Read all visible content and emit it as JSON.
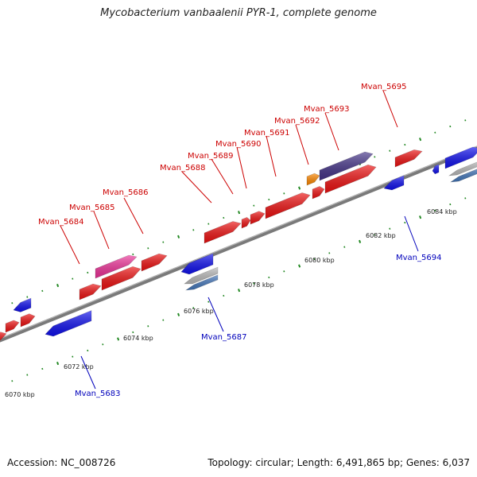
{
  "title": "Mycobacterium vanbaalenii PYR-1, complete genome",
  "footer": {
    "accession": "Accession: NC_008726",
    "summary": "Topology: circular; Length: 6,491,865 bp; Genes: 6,037"
  },
  "colors": {
    "backbone": "#7a7a7a",
    "forward_label": "#cc0000",
    "reverse_label": "#0000bb",
    "tick": "#228822",
    "gene_red": "#ee1111",
    "gene_blue": "#1111ee",
    "gene_pink": "#ee3399",
    "gene_orange": "#ff8800",
    "gene_purple": "#443388",
    "gene_gray": "#bbbbbb",
    "gene_lightblue": "#4477bb"
  },
  "scale_labels": [
    "6070 kbp",
    "6072 kbp",
    "6074 kbp",
    "6076 kbp",
    "6078 kbp",
    "6080 kbp",
    "6082 kbp",
    "6084 kbp"
  ],
  "forward_genes": [
    "Mvan_5684",
    "Mvan_5685",
    "Mvan_5686",
    "Mvan_5688",
    "Mvan_5689",
    "Mvan_5690",
    "Mvan_5691",
    "Mvan_5692",
    "Mvan_5693",
    "Mvan_5695"
  ],
  "reverse_genes": [
    "Mvan_5683",
    "Mvan_5687",
    "Mvan_5694"
  ]
}
